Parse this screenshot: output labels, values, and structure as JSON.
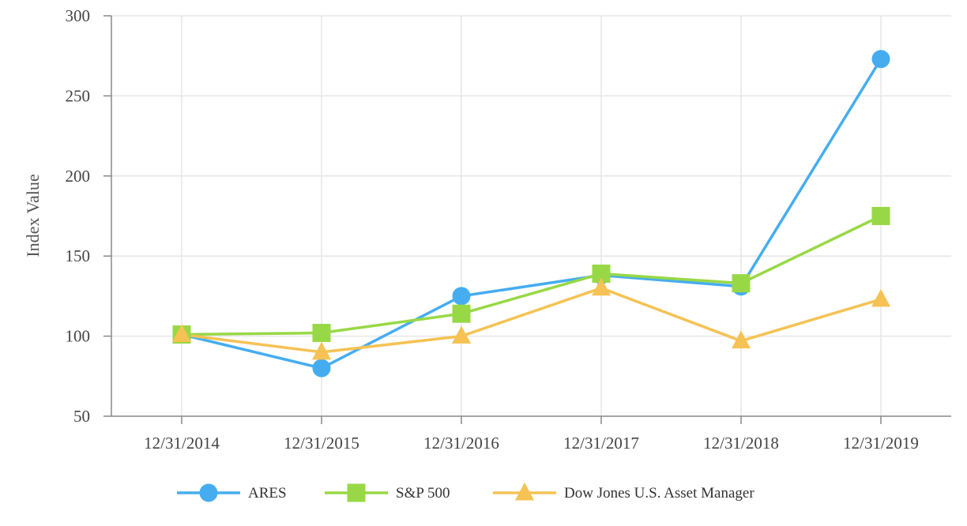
{
  "chart_data": {
    "type": "line",
    "title": "",
    "xlabel": "",
    "ylabel": "Index Value",
    "categories": [
      "12/31/2014",
      "12/31/2015",
      "12/31/2016",
      "12/31/2017",
      "12/31/2018",
      "12/31/2019"
    ],
    "ylim": [
      50,
      300
    ],
    "yticks": [
      50,
      100,
      150,
      200,
      250,
      300
    ],
    "grid": true,
    "legend_position": "bottom",
    "series": [
      {
        "name": "ARES",
        "marker": "circle",
        "color": "#45adef",
        "values": [
          101,
          80,
          125,
          138,
          131,
          273
        ]
      },
      {
        "name": "S&P 500",
        "marker": "square",
        "color": "#98d846",
        "values": [
          101,
          102,
          114,
          139,
          133,
          175
        ]
      },
      {
        "name": "Dow Jones U.S. Asset Manager",
        "marker": "triangle",
        "color": "#f5c253",
        "values": [
          101,
          90,
          100,
          130,
          97,
          123
        ]
      }
    ]
  }
}
